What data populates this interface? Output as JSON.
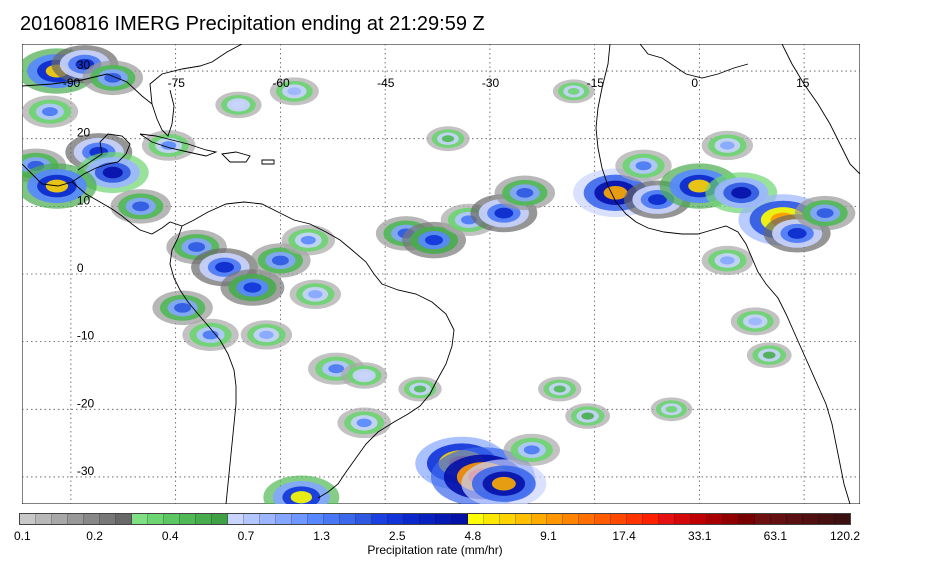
{
  "title": "20160816 IMERG Precipitation ending at 21:29:59 Z",
  "map": {
    "projection": "equirectangular",
    "lon_range": [
      -97,
      23
    ],
    "lat_range": [
      -34,
      34
    ],
    "lon_ticks": [
      {
        "value": -90,
        "label": "-90"
      },
      {
        "value": -75,
        "label": "-75"
      },
      {
        "value": -60,
        "label": "-60"
      },
      {
        "value": -45,
        "label": "-45"
      },
      {
        "value": -30,
        "label": "-30"
      },
      {
        "value": -15,
        "label": "-15"
      },
      {
        "value": 0,
        "label": "0"
      },
      {
        "value": 15,
        "label": "15"
      }
    ],
    "lat_ticks": [
      {
        "value": 30,
        "label": "30"
      },
      {
        "value": 20,
        "label": "20"
      },
      {
        "value": 10,
        "label": "10"
      },
      {
        "value": 0,
        "label": "0"
      },
      {
        "value": -10,
        "label": "-10"
      },
      {
        "value": -20,
        "label": "-20"
      },
      {
        "value": -30,
        "label": "-30"
      }
    ],
    "grid": "dotted",
    "coast_color": "#000000",
    "precip_cells": [
      {
        "lon": -92,
        "lat": 30,
        "rate": 6
      },
      {
        "lon": -88,
        "lat": 31,
        "rate": 3
      },
      {
        "lon": -84,
        "lat": 29,
        "rate": 2
      },
      {
        "lon": -93,
        "lat": 24,
        "rate": 1.5
      },
      {
        "lon": -86,
        "lat": 18,
        "rate": 3
      },
      {
        "lon": -84,
        "lat": 15,
        "rate": 4
      },
      {
        "lon": -95,
        "lat": 16,
        "rate": 2
      },
      {
        "lon": -92,
        "lat": 13,
        "rate": 6
      },
      {
        "lon": -80,
        "lat": 10,
        "rate": 2
      },
      {
        "lon": -76,
        "lat": 19,
        "rate": 1.2
      },
      {
        "lon": -66,
        "lat": 25,
        "rate": 0.6
      },
      {
        "lon": -58,
        "lat": 27,
        "rate": 0.8
      },
      {
        "lon": -72,
        "lat": 4,
        "rate": 2
      },
      {
        "lon": -68,
        "lat": 1,
        "rate": 3
      },
      {
        "lon": -64,
        "lat": -2,
        "rate": 2.5
      },
      {
        "lon": -60,
        "lat": 2,
        "rate": 2
      },
      {
        "lon": -56,
        "lat": 5,
        "rate": 1.2
      },
      {
        "lon": -74,
        "lat": -5,
        "rate": 2
      },
      {
        "lon": -70,
        "lat": -9,
        "rate": 1.5
      },
      {
        "lon": -62,
        "lat": -9,
        "rate": 1
      },
      {
        "lon": -52,
        "lat": -14,
        "rate": 1.5
      },
      {
        "lon": -48,
        "lat": -15,
        "rate": 0.6
      },
      {
        "lon": -55,
        "lat": -3,
        "rate": 1
      },
      {
        "lon": -42,
        "lat": 6,
        "rate": 2
      },
      {
        "lon": -38,
        "lat": 5,
        "rate": 2.5
      },
      {
        "lon": -33,
        "lat": 8,
        "rate": 1.5
      },
      {
        "lon": -28,
        "lat": 9,
        "rate": 3
      },
      {
        "lon": -25,
        "lat": 12,
        "rate": 2
      },
      {
        "lon": -12,
        "lat": 12,
        "rate": 8
      },
      {
        "lon": -6,
        "lat": 11,
        "rate": 3
      },
      {
        "lon": -8,
        "lat": 16,
        "rate": 1.5
      },
      {
        "lon": 0,
        "lat": 13,
        "rate": 6
      },
      {
        "lon": 6,
        "lat": 12,
        "rate": 4
      },
      {
        "lon": 4,
        "lat": 19,
        "rate": 1
      },
      {
        "lon": 12,
        "lat": 8,
        "rate": 10
      },
      {
        "lon": 14,
        "lat": 6,
        "rate": 3
      },
      {
        "lon": 18,
        "lat": 9,
        "rate": 2
      },
      {
        "lon": 4,
        "lat": 2,
        "rate": 1
      },
      {
        "lon": 8,
        "lat": -7,
        "rate": 0.8
      },
      {
        "lon": 10,
        "lat": -12,
        "rate": 0.5
      },
      {
        "lon": -40,
        "lat": -17,
        "rate": 0.4
      },
      {
        "lon": -34,
        "lat": -28,
        "rate": 12
      },
      {
        "lon": -31,
        "lat": -30,
        "rate": 20
      },
      {
        "lon": -28,
        "lat": -31,
        "rate": 8
      },
      {
        "lon": -24,
        "lat": -26,
        "rate": 1.5
      },
      {
        "lon": -57,
        "lat": -33,
        "rate": 5
      },
      {
        "lon": -16,
        "lat": -21,
        "rate": 0.5
      },
      {
        "lon": -20,
        "lat": -17,
        "rate": 0.4
      },
      {
        "lon": -4,
        "lat": -20,
        "rate": 0.3
      },
      {
        "lon": -36,
        "lat": 20,
        "rate": 0.4
      },
      {
        "lon": -18,
        "lat": 27,
        "rate": 0.3
      },
      {
        "lon": -48,
        "lat": -22,
        "rate": 1.2
      }
    ]
  },
  "colorbar": {
    "colors": [
      "#c8c8c8",
      "#b8b8b8",
      "#a8a8a8",
      "#989898",
      "#888888",
      "#787878",
      "#686868",
      "#7ee082",
      "#6cd571",
      "#5cc762",
      "#50b956",
      "#48ab4e",
      "#40a046",
      "#c9d4ff",
      "#b4c6ff",
      "#9cb6ff",
      "#84a6ff",
      "#6e98ff",
      "#5888ff",
      "#4a78f5",
      "#3c68ec",
      "#2e58e2",
      "#1c40e0",
      "#1034d8",
      "#0a28cc",
      "#0820c0",
      "#0618b4",
      "#0410a8",
      "#ffff00",
      "#ffe800",
      "#ffd400",
      "#ffc000",
      "#ffac00",
      "#ff9800",
      "#ff8400",
      "#ff7000",
      "#ff5c00",
      "#ff4800",
      "#ff3400",
      "#ff2000",
      "#e61010",
      "#d40808",
      "#c00000",
      "#a80000",
      "#900000",
      "#780000",
      "#6e1010",
      "#641010",
      "#5a1010",
      "#501010",
      "#461010",
      "#3c1010"
    ],
    "tick_labels": [
      "0.1",
      "0.2",
      "0.4",
      "0.7",
      "1.3",
      "2.5",
      "4.8",
      "9.1",
      "17.4",
      "33.1",
      "63.1",
      "120.2"
    ],
    "label": "Precipitation rate (mm/hr)"
  }
}
